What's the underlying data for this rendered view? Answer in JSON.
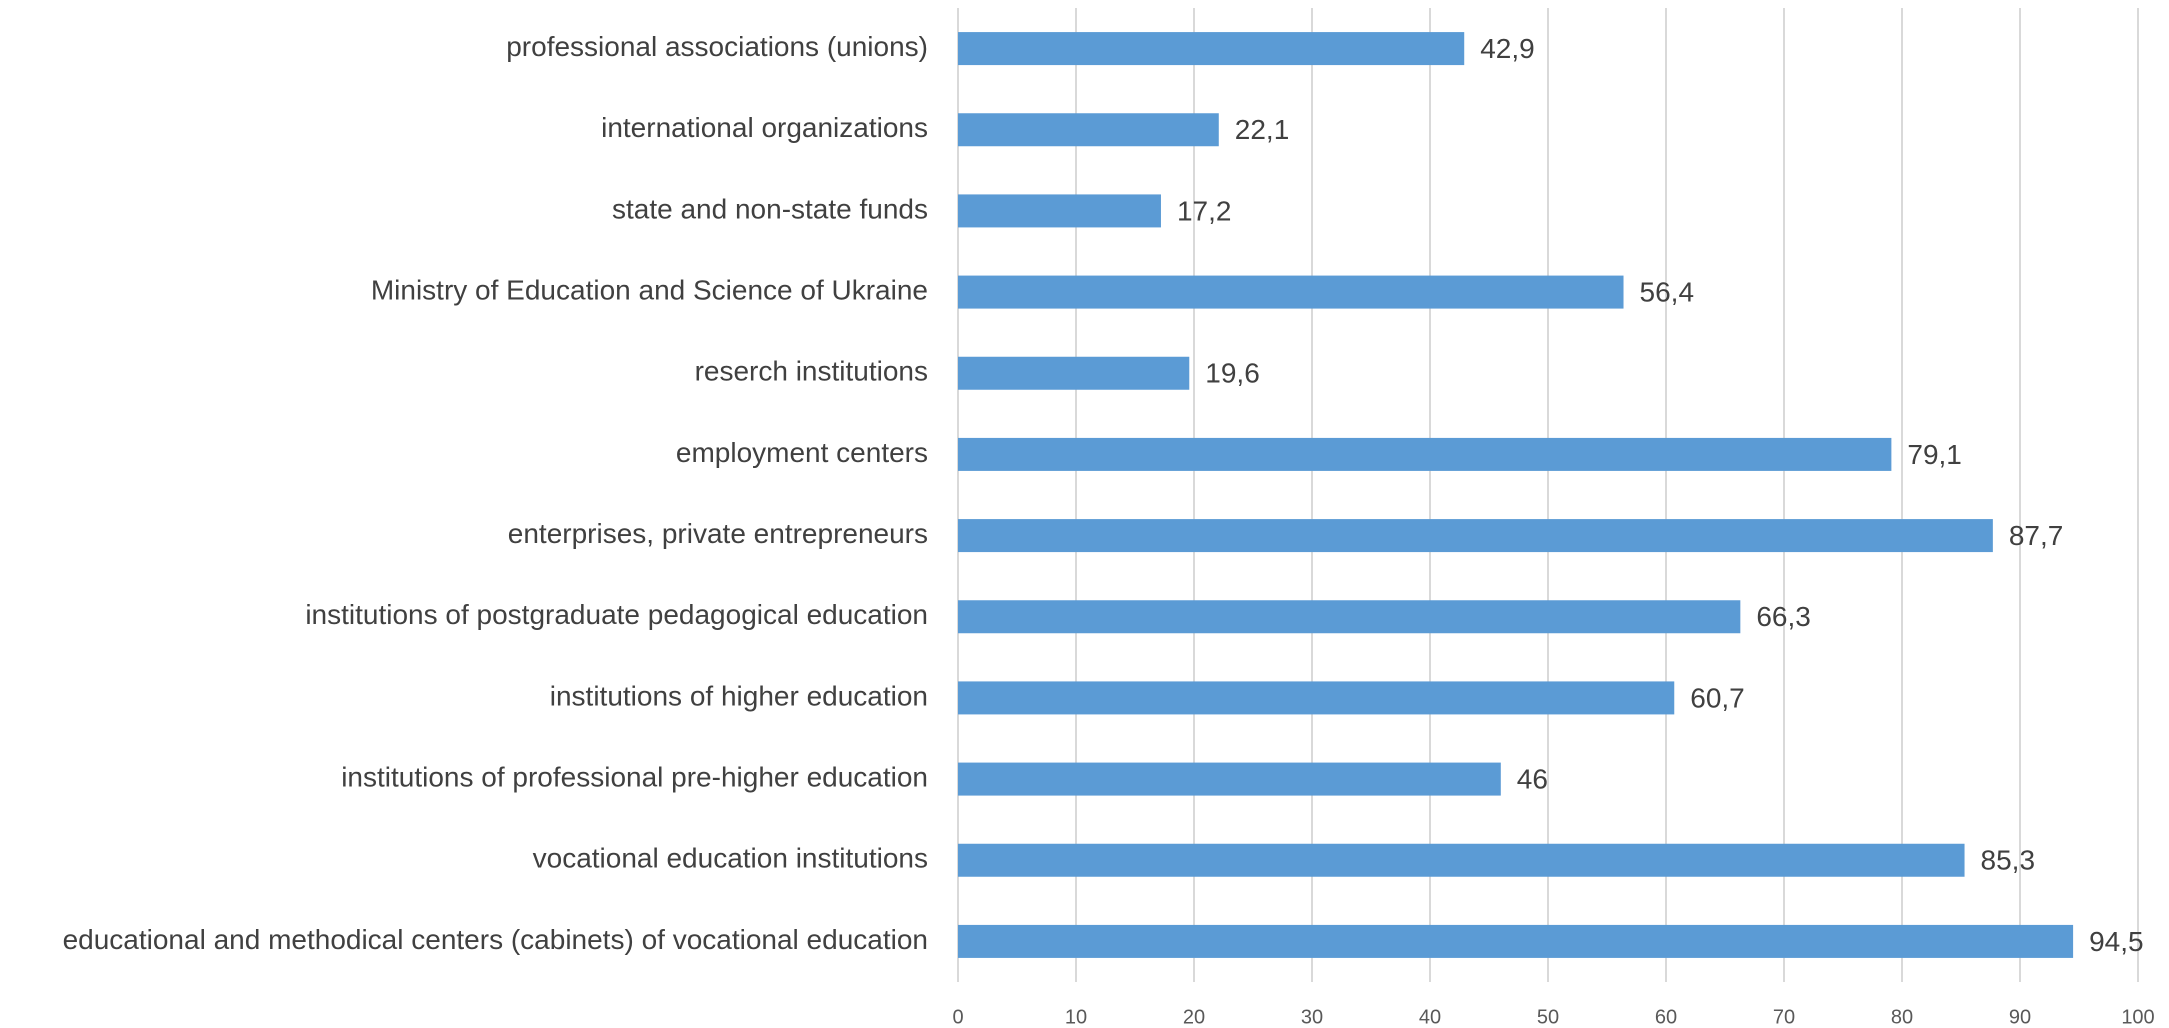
{
  "chart_data": {
    "type": "barh",
    "categories": [
      "professional associations (unions)",
      "international organizations",
      "state and non-state funds",
      "Ministry of Education and Science of Ukraine",
      "reserch institutions",
      "employment centers",
      "enterprises, private entrepreneurs",
      "institutions of postgraduate pedagogical education",
      "institutions of higher education",
      "institutions of professional pre-higher education",
      "vocational education institutions",
      "educational and methodical centers (cabinets) of vocational education"
    ],
    "values": [
      42.9,
      22.1,
      17.2,
      56.4,
      19.6,
      79.1,
      87.7,
      66.3,
      60.7,
      46,
      85.3,
      94.5
    ],
    "value_labels": [
      "42,9",
      "22,1",
      "17,2",
      "56,4",
      "19,6",
      "79,1",
      "87,7",
      "66,3",
      "60,7",
      "46",
      "85,3",
      "94,5"
    ],
    "color": "#5b9bd5",
    "xlim": [
      0,
      100
    ],
    "xticks": [
      0,
      10,
      20,
      30,
      40,
      50,
      60,
      70,
      80,
      90,
      100
    ],
    "grid": true
  }
}
